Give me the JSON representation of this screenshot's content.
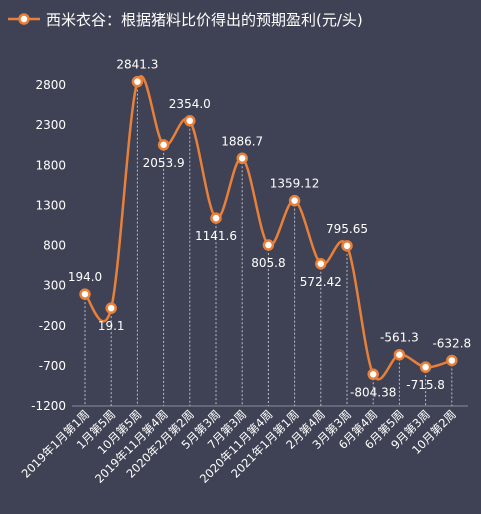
{
  "chart_data": {
    "type": "line",
    "title": "",
    "xlabel": "",
    "ylabel": "",
    "legend": {
      "placement": "top-left"
    },
    "series": [
      {
        "name": "西米衣谷：根据猪料比价得出的预期盈利(元/头)",
        "color": "#e8803a",
        "values": [
          194.0,
          19.1,
          2841.3,
          2053.9,
          2354.0,
          1141.6,
          1886.7,
          805.8,
          1359.12,
          572.42,
          795.65,
          -804.38,
          -561.3,
          -715.8,
          -632.8
        ],
        "labels": [
          "194.0",
          "19.1",
          "2841.3",
          "2053.9",
          "2354.0",
          "1141.6",
          "1886.7",
          "805.8",
          "1359.12",
          "572.42",
          "795.65",
          "-804.38",
          "-561.3",
          "-715.8",
          "-632.8"
        ]
      }
    ],
    "categories": [
      "2019年1月第1周",
      "1月第5周",
      "10月第5周",
      "2019年11月第4周",
      "2020年2月第2周",
      "5月第3周",
      "7月第3周",
      "2020年11月第4周",
      "2021年1月第1周",
      "2月第4周",
      "3月第3周",
      "6月第4周",
      "6月第5周",
      "9月第3周",
      "10月第2周"
    ],
    "yticks": [
      "2800",
      "2300",
      "1800",
      "1300",
      "800",
      "300",
      "-200",
      "-700",
      "-1200"
    ],
    "ylim": [
      -1200,
      3300
    ],
    "grid": false
  }
}
